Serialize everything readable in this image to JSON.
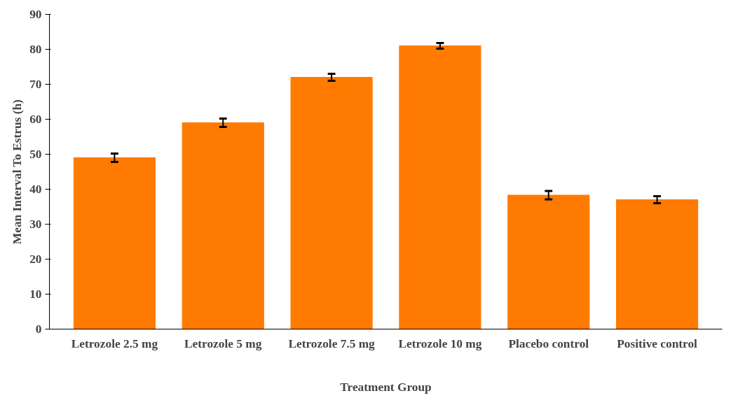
{
  "chart_data": {
    "type": "bar",
    "xlabel": "Treatment Group",
    "ylabel": "Mean Interval To Estrus (h)",
    "categories": [
      "Letrozole 2.5 mg",
      "Letrozole 5 mg",
      "Letrozole 7.5 mg",
      "Letrozole 10 mg",
      "Placebo control",
      "Positive control"
    ],
    "values": [
      49,
      59,
      72,
      81,
      38.3,
      37
    ],
    "errors": [
      1.2,
      1.2,
      1,
      0.8,
      1.2,
      1
    ],
    "color": "#ff7a00",
    "ylim": [
      0,
      90
    ],
    "yticks": [
      0,
      10,
      20,
      30,
      40,
      50,
      60,
      70,
      80,
      90
    ],
    "grid": false
  }
}
